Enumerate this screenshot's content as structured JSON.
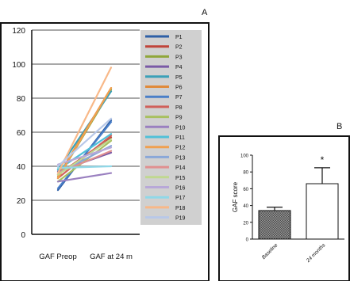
{
  "panels": {
    "a_label": "A",
    "b_label": "B"
  },
  "chart_data": [
    {
      "type": "line",
      "categories": [
        "GAF Preop",
        "GAF at 24 m"
      ],
      "ylim": [
        0,
        120
      ],
      "yticks": [
        0,
        20,
        40,
        60,
        80,
        100,
        120
      ],
      "grid": true,
      "legend": "right",
      "series": [
        {
          "name": "P1",
          "values": [
            26,
            67
          ],
          "color": "#2e5fa6"
        },
        {
          "name": "P2",
          "values": [
            35,
            57
          ],
          "color": "#c0443a"
        },
        {
          "name": "P3",
          "values": [
            33,
            85
          ],
          "color": "#8fa63a"
        },
        {
          "name": "P4",
          "values": [
            37,
            48
          ],
          "color": "#7a5aa6"
        },
        {
          "name": "P5",
          "values": [
            38,
            84
          ],
          "color": "#3aa0b8"
        },
        {
          "name": "P6",
          "values": [
            34,
            86
          ],
          "color": "#e08a3a"
        },
        {
          "name": "P7",
          "values": [
            27,
            66
          ],
          "color": "#4a7fc8"
        },
        {
          "name": "P8",
          "values": [
            33,
            58
          ],
          "color": "#d0605a"
        },
        {
          "name": "P9",
          "values": [
            31,
            55
          ],
          "color": "#a8c060"
        },
        {
          "name": "P10",
          "values": [
            31,
            36
          ],
          "color": "#9a80c0"
        },
        {
          "name": "P11",
          "values": [
            38,
            59
          ],
          "color": "#50c0d8"
        },
        {
          "name": "P12",
          "values": [
            33,
            86
          ],
          "color": "#f0a050"
        },
        {
          "name": "P13",
          "values": [
            36,
            52
          ],
          "color": "#8aa8d8"
        },
        {
          "name": "P14",
          "values": [
            36,
            49
          ],
          "color": "#e09090"
        },
        {
          "name": "P15",
          "values": [
            35,
            56
          ],
          "color": "#c0d890"
        },
        {
          "name": "P16",
          "values": [
            41,
            51
          ],
          "color": "#b8a8d8"
        },
        {
          "name": "P17",
          "values": [
            39,
            40
          ],
          "color": "#90d8e8"
        },
        {
          "name": "P18",
          "values": [
            36,
            98
          ],
          "color": "#f8b888"
        },
        {
          "name": "P19",
          "values": [
            40,
            68
          ],
          "color": "#b8c8e8"
        }
      ]
    },
    {
      "type": "bar",
      "categories": [
        "Baseline",
        "24 months"
      ],
      "values": [
        34,
        66
      ],
      "errors": [
        4,
        19
      ],
      "ylabel": "GAF score",
      "ylim": [
        0,
        100
      ],
      "yticks": [
        0,
        20,
        40,
        60,
        80,
        100
      ],
      "annotation": "*"
    }
  ]
}
